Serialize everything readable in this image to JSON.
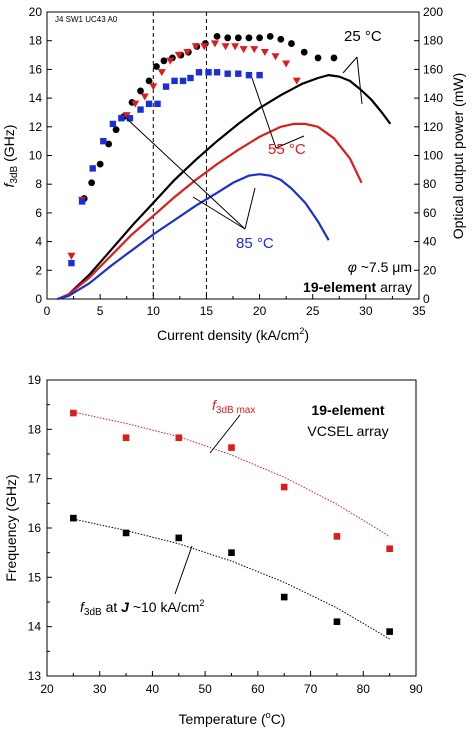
{
  "colors": {
    "black": "#000000",
    "red": "#dd1c1c",
    "blue": "#1a2fd4"
  },
  "chart_data": [
    {
      "type": "scatter",
      "title": "",
      "corner_label": "J4 SW1 UC43 A0",
      "xlabel_main": "Current density (kA/cm",
      "xlabel_sup": "2",
      "xlabel_end": ")",
      "ylabel_left_f": "f",
      "ylabel_left_sub": "3dB",
      "ylabel_left_rest": " (GHz)",
      "ylabel_right": "Optical output power (mW)",
      "xlim": [
        0,
        35
      ],
      "ylim_left": [
        0,
        20
      ],
      "ylim_right": [
        0,
        200
      ],
      "x_ticks": [
        "0",
        "5",
        "10",
        "15",
        "20",
        "25",
        "30",
        "35"
      ],
      "y_left_ticks": [
        "0",
        "2",
        "4",
        "6",
        "8",
        "10",
        "12",
        "14",
        "16",
        "18",
        "20"
      ],
      "y_right_ticks": [
        "0",
        "20",
        "40",
        "60",
        "80",
        "100",
        "120",
        "140",
        "160",
        "180",
        "200"
      ],
      "vlines": [
        10,
        15
      ],
      "annotations": {
        "t25": "25 °C",
        "t55": "55 °C",
        "t85": "85 °C",
        "phi_sym": "φ",
        "phi_val": " ~7.5 μm",
        "array_bold": "19-element",
        "array_rest": " array"
      },
      "series": [
        {
          "name": "25 °C",
          "marker": "circle",
          "color": "black",
          "x": [
            3.5,
            4.2,
            5.0,
            5.8,
            6.5,
            7.2,
            8.0,
            8.8,
            9.6,
            10.3,
            11.0,
            11.8,
            12.6,
            13.3,
            14.1,
            14.9,
            16.0,
            17.0,
            18.0,
            19.0,
            20.0,
            21.0,
            22.0,
            23.0,
            24.2,
            25.5,
            27.0
          ],
          "y": [
            7.0,
            8.1,
            9.4,
            10.8,
            11.8,
            12.7,
            13.7,
            14.5,
            15.2,
            16.2,
            16.6,
            16.8,
            17.0,
            17.2,
            17.6,
            17.8,
            18.3,
            18.2,
            18.2,
            18.2,
            18.2,
            18.3,
            18.1,
            17.8,
            17.2,
            16.8,
            16.8
          ]
        },
        {
          "name": "55 °C",
          "marker": "triangle-down",
          "color": "red",
          "x": [
            2.3,
            3.3,
            7.5,
            8.3,
            9.2,
            10.0,
            10.8,
            11.6,
            12.4,
            13.2,
            14.0,
            14.8,
            15.8,
            16.8,
            17.7,
            18.5,
            19.5,
            20.5,
            21.5,
            22.5,
            23.5
          ],
          "y": [
            3.0,
            6.9,
            12.8,
            13.6,
            14.1,
            14.8,
            15.8,
            16.6,
            17.0,
            17.2,
            17.6,
            17.6,
            17.8,
            17.6,
            17.6,
            17.4,
            17.4,
            17.2,
            16.9,
            16.4,
            15.2
          ]
        },
        {
          "name": "85 °C",
          "marker": "square",
          "color": "blue",
          "x": [
            2.3,
            3.3,
            4.3,
            5.3,
            6.2,
            7.0,
            7.8,
            8.8,
            9.6,
            10.4,
            11.2,
            12.0,
            12.8,
            13.5,
            14.3,
            15.2,
            16.0,
            17.0,
            18.0,
            19.0,
            20.0
          ],
          "y": [
            2.5,
            6.8,
            9.1,
            11.0,
            12.2,
            12.6,
            12.6,
            13.2,
            13.6,
            13.6,
            14.8,
            15.2,
            15.2,
            15.4,
            15.8,
            15.8,
            15.8,
            15.7,
            15.7,
            15.6,
            15.6
          ]
        },
        {
          "name": "power 25 °C",
          "axis": "right",
          "color": "black",
          "x": [
            1.0,
            2.0,
            4.0,
            6.0,
            8.0,
            10.0,
            12.0,
            14.0,
            16.0,
            18.0,
            20.0,
            22.0,
            24.0,
            25.5,
            26.5,
            27.5,
            28.5,
            29.5,
            30.5,
            31.5,
            32.3
          ],
          "y": [
            0,
            3,
            17,
            34,
            51,
            67,
            83,
            97,
            110,
            122,
            133,
            142,
            150,
            154,
            156,
            155,
            152,
            146,
            139,
            130,
            122
          ]
        },
        {
          "name": "power 55 °C",
          "axis": "right",
          "color": "red",
          "x": [
            1.0,
            2.0,
            4.0,
            6.0,
            8.0,
            10.0,
            12.0,
            14.0,
            16.0,
            18.0,
            20.0,
            22.0,
            23.2,
            24.3,
            25.5,
            27.0,
            28.5,
            29.6
          ],
          "y": [
            0,
            3,
            15,
            30,
            45,
            58,
            71,
            83,
            94,
            104,
            113,
            120,
            122,
            122,
            120,
            112,
            98,
            81
          ]
        },
        {
          "name": "power 85 °C",
          "axis": "right",
          "color": "blue",
          "x": [
            1.0,
            2.0,
            4.0,
            6.0,
            8.0,
            10.0,
            12.0,
            14.0,
            16.0,
            17.5,
            19.0,
            20.0,
            21.0,
            22.0,
            23.0,
            24.3,
            25.5,
            26.5
          ],
          "y": [
            0,
            2,
            11,
            23,
            34,
            45,
            55,
            65,
            74,
            81,
            86,
            87,
            86,
            83,
            77,
            67,
            54,
            41
          ]
        }
      ]
    },
    {
      "type": "scatter",
      "title": "",
      "xlabel_main": "Temperature (",
      "xlabel_sup": "o",
      "xlabel_end": "C)",
      "ylabel": "Frequency (GHz)",
      "xlim": [
        20,
        90
      ],
      "ylim": [
        13,
        19
      ],
      "x_ticks": [
        "20",
        "30",
        "40",
        "50",
        "60",
        "70",
        "80",
        "90"
      ],
      "y_ticks": [
        "13",
        "14",
        "15",
        "16",
        "17",
        "18",
        "19"
      ],
      "annotations": {
        "array_line1": "19-element",
        "array_line2": "VCSEL array"
      },
      "series": [
        {
          "name_f": "f",
          "name_sub": "3dB max",
          "color": "red",
          "marker": "square",
          "x": [
            25,
            35,
            45,
            55,
            65,
            75,
            85
          ],
          "y": [
            18.33,
            17.83,
            17.83,
            17.63,
            16.83,
            15.83,
            15.58
          ],
          "fit_x": [
            25,
            35,
            45,
            55,
            65,
            75,
            85
          ],
          "fit_y": [
            18.35,
            18.12,
            17.85,
            17.48,
            17.03,
            16.48,
            15.83
          ]
        },
        {
          "name_f": "f",
          "name_sub": "3dB",
          "name_at": " at ",
          "name_j": "J",
          "name_tail": " ~10 kA/cm",
          "name_sup": "2",
          "color": "black",
          "marker": "square",
          "x": [
            25,
            35,
            45,
            55,
            65,
            75,
            85
          ],
          "y": [
            16.2,
            15.9,
            15.8,
            15.5,
            14.6,
            14.1,
            13.9
          ],
          "fit_x": [
            25,
            35,
            45,
            55,
            65,
            75,
            85
          ],
          "fit_y": [
            16.18,
            15.95,
            15.68,
            15.33,
            14.9,
            14.38,
            13.75
          ]
        }
      ]
    }
  ]
}
